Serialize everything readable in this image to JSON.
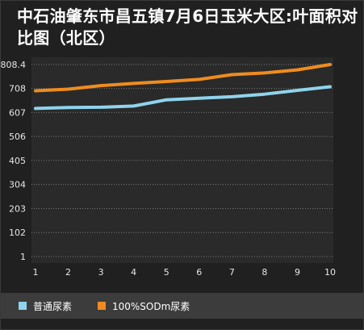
{
  "title": "中石油肇东市昌五镇7月6日玉米大区:叶面积对比图（北区）",
  "chart_data": {
    "type": "line",
    "title": "中石油肇东市昌五镇7月6日玉米大区:叶面积对比图（北区）",
    "x": [
      1,
      2,
      3,
      4,
      5,
      6,
      7,
      8,
      9,
      10
    ],
    "x_tick_labels": [
      "1",
      "2",
      "3",
      "4",
      "5",
      "6",
      "7",
      "8",
      "9",
      "10"
    ],
    "y_tick_labels": [
      "808.4",
      "708",
      "607",
      "506",
      "405",
      "304",
      "203",
      "102",
      "1"
    ],
    "y_ticks": [
      808.4,
      708,
      607,
      506,
      405,
      304,
      203,
      102,
      1
    ],
    "ylim": [
      1,
      808.4
    ],
    "grid": true,
    "legend_position": "bottom",
    "series": [
      {
        "name": "普通尿素",
        "color": "#8fd3ec",
        "values": [
          624,
          628,
          629,
          634,
          660,
          667,
          673,
          684,
          700,
          715
        ]
      },
      {
        "name": "100%SODm尿素",
        "color": "#ef8c1f",
        "values": [
          698,
          705,
          720,
          729,
          737,
          746,
          766,
          773,
          786,
          808.4
        ]
      }
    ]
  }
}
